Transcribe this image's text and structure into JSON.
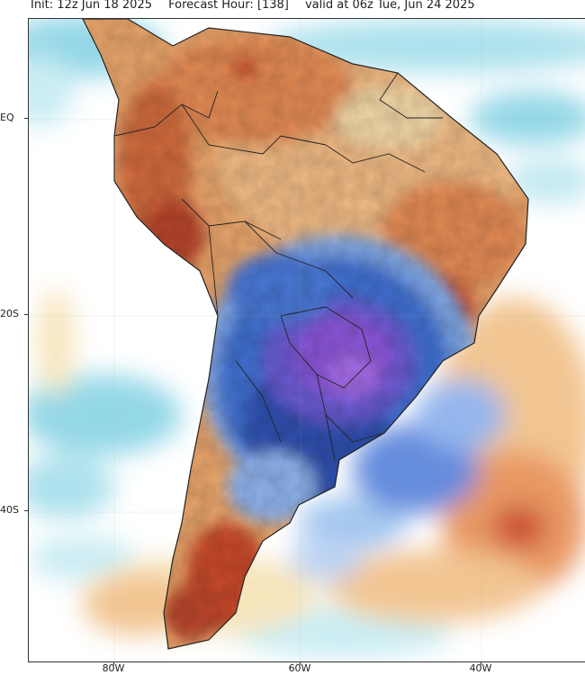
{
  "header": {
    "init": "Init: 12z Jun 18 2025",
    "forecast_hour": "Forecast Hour: [138]",
    "valid": "valid at 06z Tue, Jun 24 2025"
  },
  "map": {
    "region": "South America",
    "latitude_labels": [
      "EQ",
      "20S",
      "40S"
    ],
    "longitude_labels": [
      "80W",
      "60W",
      "40W"
    ],
    "colors": {
      "ocean_neutral": "#ffffff",
      "cool_light": "#8fd6e6",
      "cool_mid": "#3f6fd0",
      "cold_core": "#8a55d8",
      "warm_light": "#f3d8a8",
      "warm_mid": "#e7935a",
      "warm_strong": "#c84a2a",
      "border_line": "#222222"
    }
  }
}
